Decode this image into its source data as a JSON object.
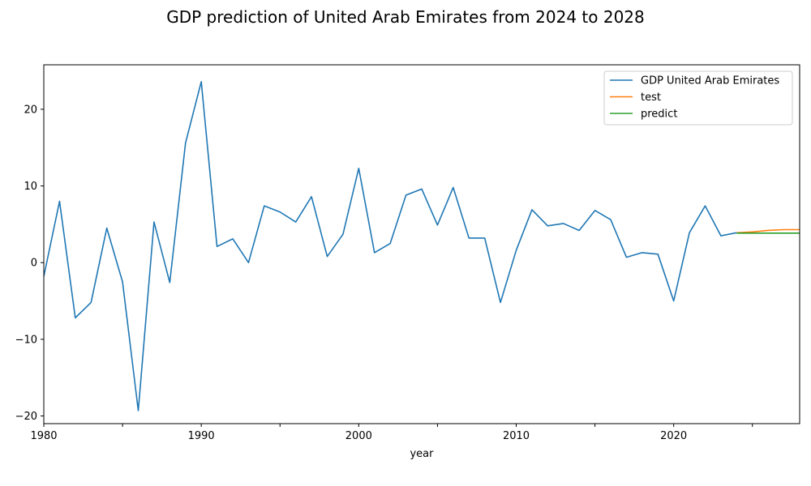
{
  "chart_data": {
    "type": "line",
    "title": "GDP prediction of United Arab Emirates from 2024 to 2028",
    "xlabel": "year",
    "ylabel": "",
    "xlim": [
      1980,
      2028
    ],
    "ylim": [
      -21,
      25.8
    ],
    "xticks": [
      1980,
      1985,
      1990,
      1995,
      2000,
      2005,
      2010,
      2015,
      2020,
      2025
    ],
    "xtick_labels": [
      "1980",
      "",
      "1990",
      "",
      "2000",
      "",
      "2010",
      "",
      "2020",
      ""
    ],
    "yticks": [
      -20,
      -10,
      0,
      10,
      20
    ],
    "ytick_labels": [
      "−20",
      "−10",
      "0",
      "10",
      "20"
    ],
    "legend_position": "top-right",
    "series": [
      {
        "name": "GDP United Arab Emirates",
        "color": "#1f77b4",
        "x": [
          1980,
          1981,
          1982,
          1983,
          1984,
          1985,
          1986,
          1987,
          1988,
          1989,
          1990,
          1991,
          1992,
          1993,
          1994,
          1995,
          1996,
          1997,
          1998,
          1999,
          2000,
          2001,
          2002,
          2003,
          2004,
          2005,
          2006,
          2007,
          2008,
          2009,
          2010,
          2011,
          2012,
          2013,
          2014,
          2015,
          2016,
          2017,
          2018,
          2019,
          2020,
          2021,
          2022,
          2023,
          2024
        ],
        "values": [
          -1.8,
          8.0,
          -7.2,
          -5.2,
          4.5,
          -2.5,
          -19.3,
          5.3,
          -2.6,
          15.6,
          23.6,
          2.1,
          3.1,
          0.0,
          7.4,
          6.6,
          5.3,
          8.6,
          0.8,
          3.7,
          12.3,
          1.3,
          2.5,
          8.8,
          9.6,
          4.9,
          9.8,
          3.2,
          3.2,
          -5.2,
          1.6,
          6.9,
          4.8,
          5.1,
          4.2,
          6.8,
          5.6,
          0.7,
          1.3,
          1.1,
          -5.0,
          3.9,
          7.4,
          3.5,
          3.9
        ]
      },
      {
        "name": "test",
        "color": "#ff7f0e",
        "x": [
          2024,
          2025,
          2026,
          2027,
          2028
        ],
        "values": [
          3.9,
          4.0,
          4.2,
          4.3,
          4.3
        ]
      },
      {
        "name": "predict",
        "color": "#2ca02c",
        "x": [
          2024,
          2025,
          2026,
          2027,
          2028
        ],
        "values": [
          3.85,
          3.85,
          3.85,
          3.85,
          3.85
        ]
      }
    ]
  }
}
